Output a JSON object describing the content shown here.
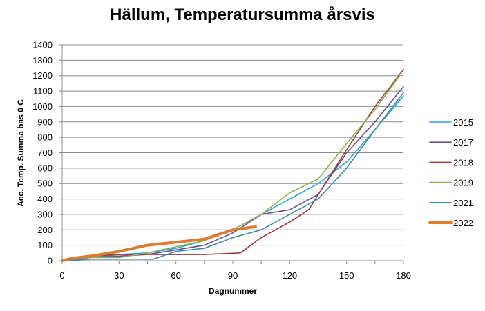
{
  "chart_data": {
    "type": "line",
    "title": "Hällum, Temperatursumma årsvis",
    "xlabel": "Dagnummer",
    "ylabel": "Acc. Temp. Summa bas 0 C",
    "xlim": [
      0,
      180
    ],
    "ylim": [
      0,
      1400
    ],
    "xticks": [
      0,
      30,
      60,
      90,
      120,
      150,
      180
    ],
    "yticks": [
      0,
      100,
      200,
      300,
      400,
      500,
      600,
      700,
      800,
      900,
      1000,
      1100,
      1200,
      1300,
      1400
    ],
    "grid": "horizontal",
    "legend_position": "right",
    "series": [
      {
        "name": "2015",
        "color": "#1fa8d8",
        "width": 1.6,
        "x": [
          0,
          15,
          30,
          45,
          60,
          75,
          90,
          105,
          120,
          135,
          150,
          165,
          180
        ],
        "y": [
          0,
          20,
          40,
          50,
          80,
          130,
          200,
          300,
          400,
          500,
          640,
          850,
          1070
        ]
      },
      {
        "name": "2017",
        "color": "#6b4c9a",
        "width": 1.6,
        "x": [
          0,
          15,
          30,
          45,
          60,
          75,
          90,
          105,
          120,
          135,
          150,
          165,
          180
        ],
        "y": [
          0,
          20,
          30,
          40,
          70,
          100,
          180,
          300,
          330,
          430,
          700,
          900,
          1130
        ]
      },
      {
        "name": "2018",
        "color": "#a43a3a",
        "width": 1.6,
        "x": [
          0,
          15,
          30,
          45,
          60,
          75,
          94,
          105,
          120,
          130,
          150,
          165,
          180
        ],
        "y": [
          0,
          30,
          40,
          40,
          40,
          40,
          50,
          150,
          250,
          330,
          720,
          1000,
          1240
        ]
      },
      {
        "name": "2019",
        "color": "#8db04c",
        "width": 1.6,
        "x": [
          0,
          15,
          30,
          45,
          60,
          75,
          90,
          105,
          120,
          135,
          150,
          165,
          178
        ],
        "y": [
          0,
          20,
          20,
          50,
          90,
          130,
          200,
          300,
          440,
          530,
          760,
          980,
          1200
        ]
      },
      {
        "name": "2021",
        "color": "#3a8ab0",
        "width": 1.6,
        "x": [
          0,
          15,
          30,
          48,
          60,
          75,
          90,
          105,
          120,
          135,
          150,
          165,
          180
        ],
        "y": [
          0,
          10,
          10,
          10,
          60,
          80,
          150,
          200,
          300,
          400,
          600,
          850,
          1090
        ]
      },
      {
        "name": "2022",
        "color": "#e07b2e",
        "width": 4,
        "x": [
          0,
          5,
          15,
          30,
          45,
          60,
          75,
          90,
          102
        ],
        "y": [
          0,
          15,
          30,
          60,
          100,
          120,
          140,
          200,
          220
        ]
      }
    ]
  }
}
